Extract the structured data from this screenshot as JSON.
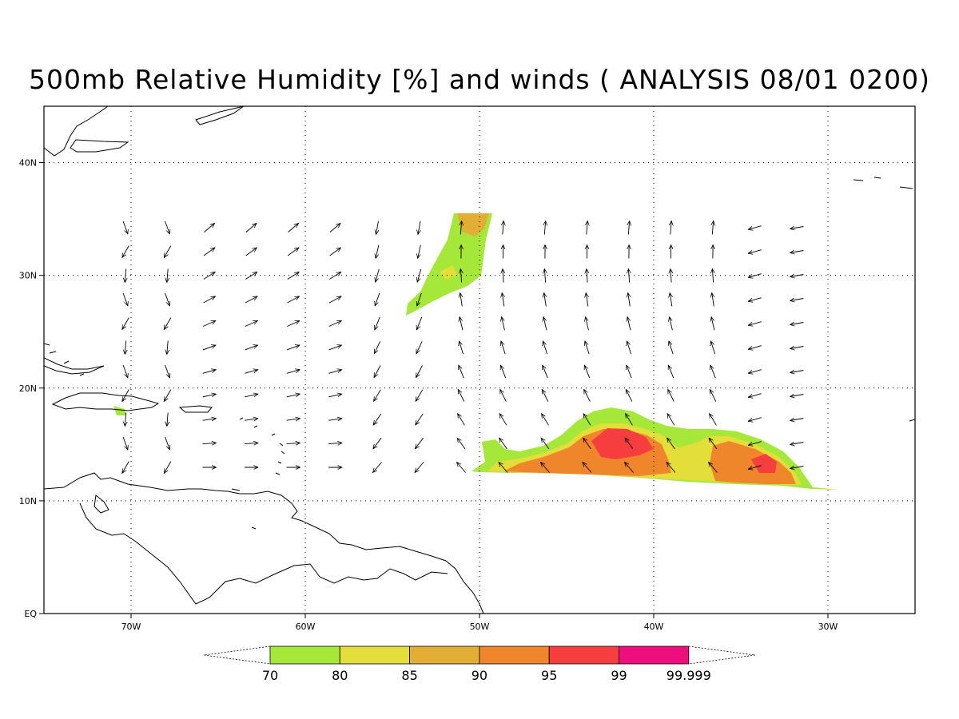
{
  "title": "500mb Relative Humidity [%] and winds ( ANALYSIS 08/01 0200)",
  "map": {
    "lon_range": [
      -75,
      -25
    ],
    "lat_range": [
      0,
      45
    ],
    "x_ticks": [
      {
        "value": -70,
        "label": "70W"
      },
      {
        "value": -60,
        "label": "60W"
      },
      {
        "value": -50,
        "label": "50W"
      },
      {
        "value": -40,
        "label": "40W"
      },
      {
        "value": -30,
        "label": "30W"
      }
    ],
    "y_ticks": [
      {
        "value": 0,
        "label": "EQ"
      },
      {
        "value": 10,
        "label": "10N"
      },
      {
        "value": 20,
        "label": "20N"
      },
      {
        "value": 30,
        "label": "30N"
      },
      {
        "value": 40,
        "label": "40N"
      }
    ],
    "grid": "dotted"
  },
  "colorbar": {
    "bins": [
      {
        "color": "#a6e83a"
      },
      {
        "color": "#e4de3a"
      },
      {
        "color": "#e2ae36"
      },
      {
        "color": "#f0862c"
      },
      {
        "color": "#f63e3e"
      },
      {
        "color": "#ee0e7e"
      }
    ],
    "labels": [
      "70",
      "80",
      "85",
      "90",
      "95",
      "99",
      "99.999"
    ]
  }
}
